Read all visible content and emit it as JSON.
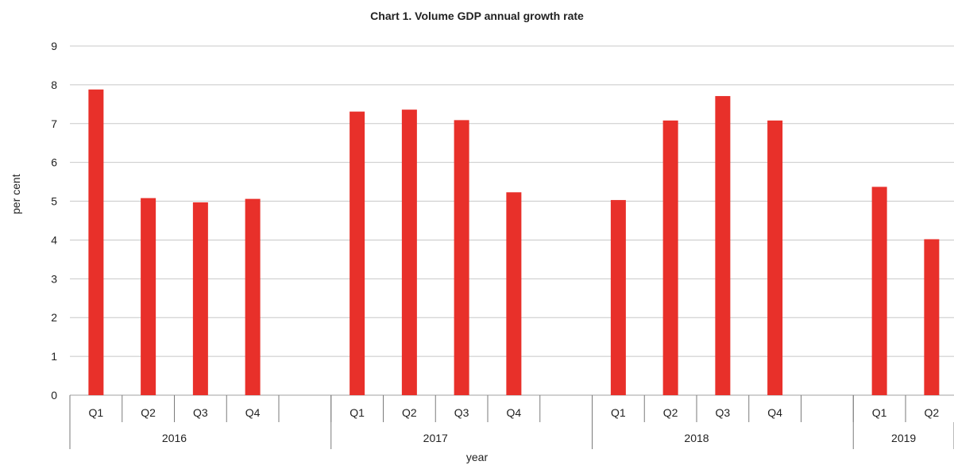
{
  "chart_data": {
    "type": "bar",
    "title": "Chart 1. Volume GDP annual growth rate",
    "ylabel": "per cent",
    "xlabel": "year",
    "ylim": [
      0,
      9
    ],
    "yticks": [
      0,
      1,
      2,
      3,
      4,
      5,
      6,
      7,
      8,
      9
    ],
    "grid": true,
    "bar_color": "#e8302a",
    "groups": [
      {
        "year": "2016",
        "quarters": [
          "Q1",
          "Q2",
          "Q3",
          "Q4"
        ],
        "values": [
          7.88,
          5.08,
          4.97,
          5.06
        ]
      },
      {
        "year": "2017",
        "quarters": [
          "Q1",
          "Q2",
          "Q3",
          "Q4"
        ],
        "values": [
          7.31,
          7.36,
          7.09,
          5.23
        ]
      },
      {
        "year": "2018",
        "quarters": [
          "Q1",
          "Q2",
          "Q3",
          "Q4"
        ],
        "values": [
          5.03,
          7.08,
          7.71,
          7.08
        ]
      },
      {
        "year": "2019",
        "quarters": [
          "Q1",
          "Q2"
        ],
        "values": [
          5.37,
          4.02
        ]
      }
    ]
  }
}
